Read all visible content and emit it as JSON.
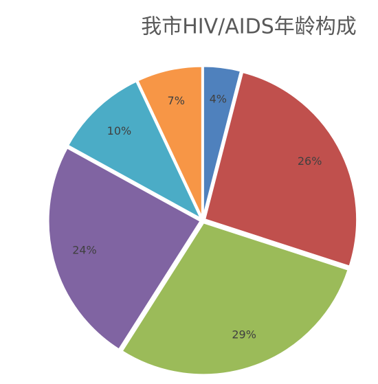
{
  "chart_data": {
    "type": "pie",
    "title": "我市HIV/AIDS年龄构成",
    "values": [
      4,
      26,
      29,
      24,
      10,
      7
    ],
    "value_labels": [
      "4%",
      "26%",
      "29%",
      "24%",
      "10%",
      "7%"
    ],
    "colors": [
      "#4f81bd",
      "#c0504d",
      "#9bbb59",
      "#8064a2",
      "#4bacc6",
      "#f79646"
    ]
  }
}
